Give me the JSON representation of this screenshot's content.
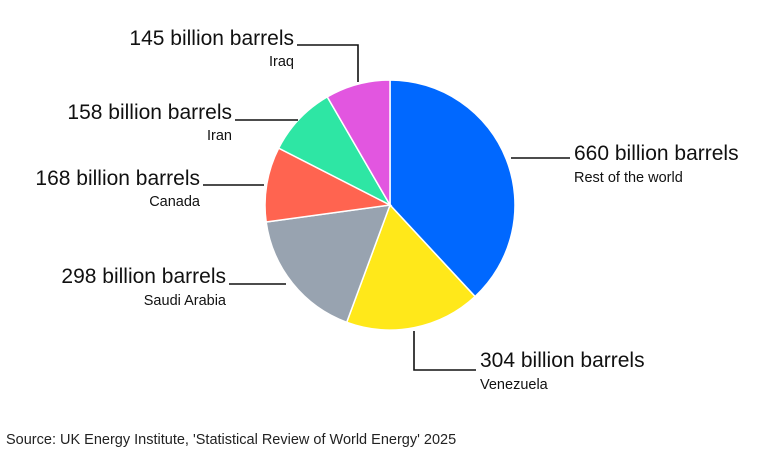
{
  "chart_data": {
    "type": "pie",
    "title": "",
    "unit": "billion barrels",
    "slices": [
      {
        "label": "Rest of the world",
        "value": 660,
        "value_text": "660 billion barrels",
        "color": "#0068ff"
      },
      {
        "label": "Venezuela",
        "value": 304,
        "value_text": "304 billion barrels",
        "color": "#ffe81a"
      },
      {
        "label": "Saudi Arabia",
        "value": 298,
        "value_text": "298 billion barrels",
        "color": "#98a3b0"
      },
      {
        "label": "Canada",
        "value": 168,
        "value_text": "168 billion barrels",
        "color": "#ff6450"
      },
      {
        "label": "Iran",
        "value": 158,
        "value_text": "158 billion barrels",
        "color": "#2ee6a4"
      },
      {
        "label": "Iraq",
        "value": 145,
        "value_text": "145 billion barrels",
        "color": "#e256e0"
      }
    ]
  },
  "source": "Source: UK Energy Institute, 'Statistical Review of World Energy' 2025"
}
